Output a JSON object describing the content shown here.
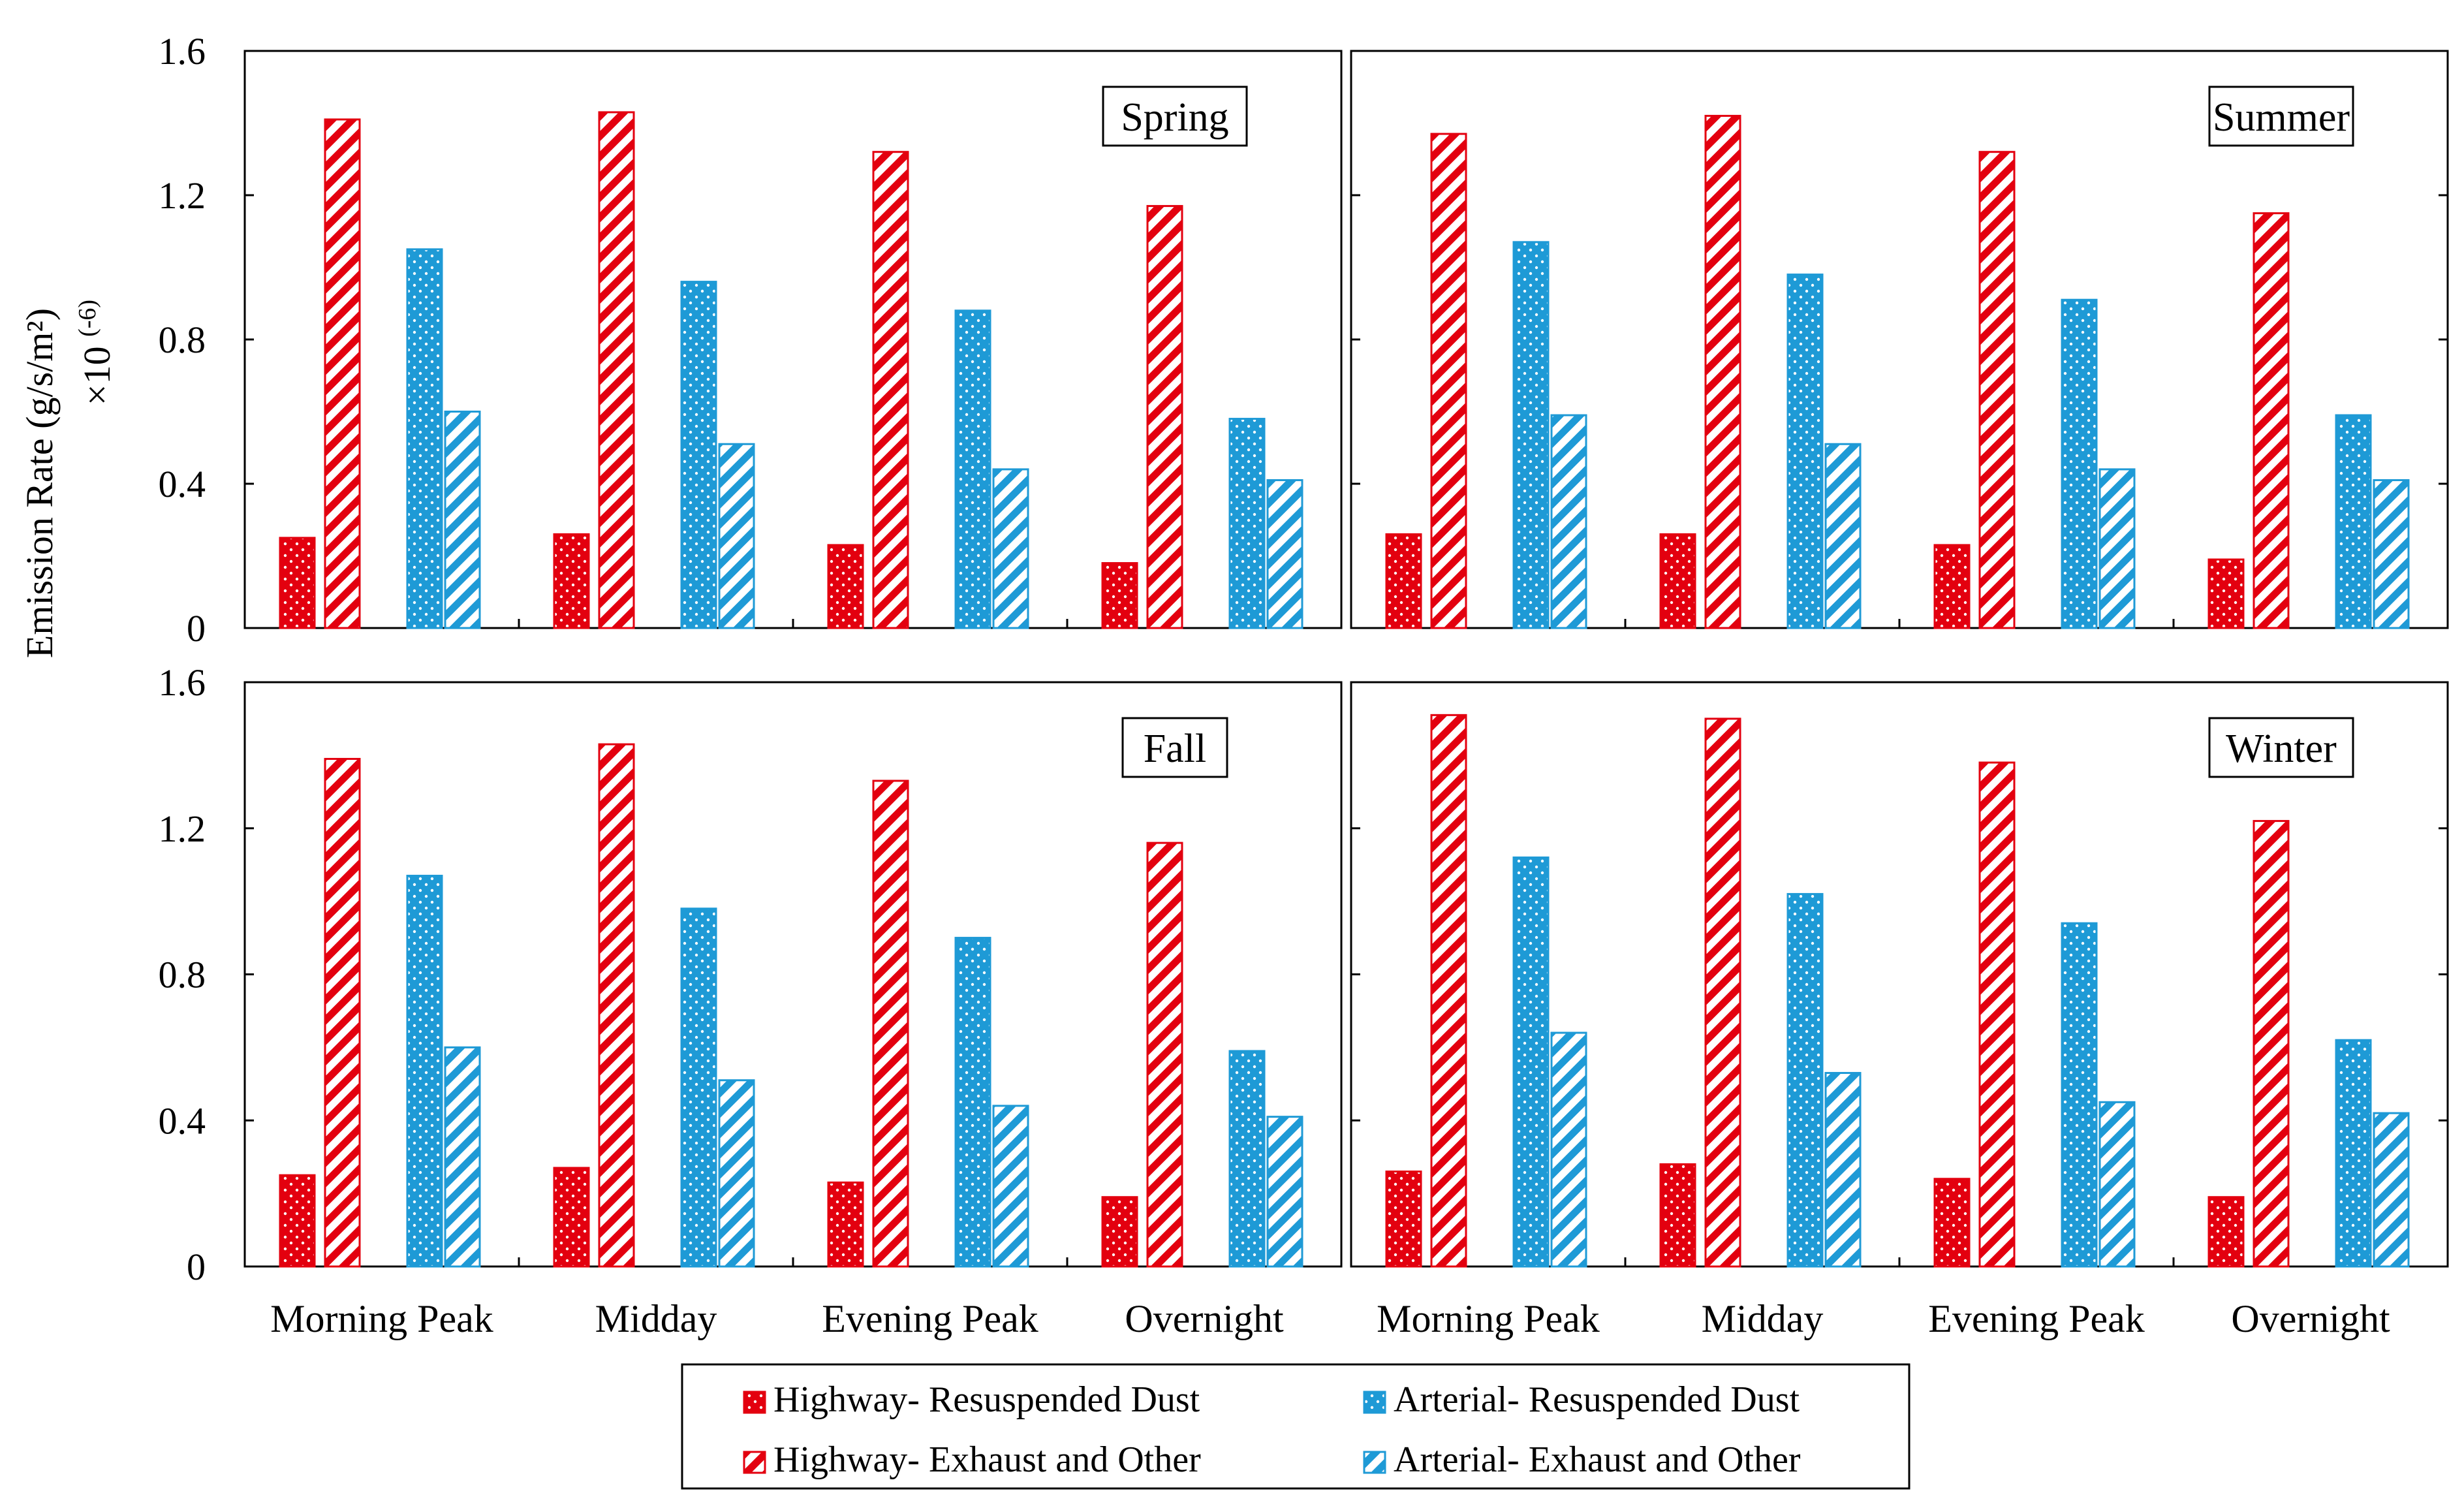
{
  "chart_data": {
    "type": "bar",
    "ylabel": "Emission Rate (g/s/m²)",
    "ylabel_multiplier": "×10",
    "ylabel_exponent": "(-6)",
    "ylim": [
      0,
      1.6
    ],
    "yticks": [
      "0",
      "0.4",
      "0.8",
      "1.2",
      "1.6"
    ],
    "categories": [
      "Morning Peak",
      "Midday",
      "Evening Peak",
      "Overnight"
    ],
    "series_styles": [
      {
        "name": "Highway- Resuspended Dust",
        "color": "#e3000f",
        "pattern": "dots"
      },
      {
        "name": "Highway- Exhaust and Other",
        "color": "#e3000f",
        "pattern": "hatch"
      },
      {
        "name": "Arterial- Resuspended Dust",
        "color": "#1e9ad6",
        "pattern": "dots"
      },
      {
        "name": "Arterial- Exhaust and Other",
        "color": "#1e9ad6",
        "pattern": "hatch"
      }
    ],
    "legend_position": "bottom-center",
    "panels": [
      {
        "title": "Spring",
        "series": [
          {
            "name": "Highway- Resuspended Dust",
            "values": [
              0.25,
              0.26,
              0.23,
              0.18
            ]
          },
          {
            "name": "Highway- Exhaust and Other",
            "values": [
              1.41,
              1.43,
              1.32,
              1.17
            ]
          },
          {
            "name": "Arterial- Resuspended Dust",
            "values": [
              1.05,
              0.96,
              0.88,
              0.58
            ]
          },
          {
            "name": "Arterial- Exhaust and Other",
            "values": [
              0.6,
              0.51,
              0.44,
              0.41
            ]
          }
        ]
      },
      {
        "title": "Summer",
        "series": [
          {
            "name": "Highway- Resuspended Dust",
            "values": [
              0.26,
              0.26,
              0.23,
              0.19
            ]
          },
          {
            "name": "Highway- Exhaust and Other",
            "values": [
              1.37,
              1.42,
              1.32,
              1.15
            ]
          },
          {
            "name": "Arterial- Resuspended Dust",
            "values": [
              1.07,
              0.98,
              0.91,
              0.59
            ]
          },
          {
            "name": "Arterial- Exhaust and Other",
            "values": [
              0.59,
              0.51,
              0.44,
              0.41
            ]
          }
        ]
      },
      {
        "title": "Fall",
        "series": [
          {
            "name": "Highway- Resuspended Dust",
            "values": [
              0.25,
              0.27,
              0.23,
              0.19
            ]
          },
          {
            "name": "Highway- Exhaust and Other",
            "values": [
              1.39,
              1.43,
              1.33,
              1.16
            ]
          },
          {
            "name": "Arterial- Resuspended Dust",
            "values": [
              1.07,
              0.98,
              0.9,
              0.59
            ]
          },
          {
            "name": "Arterial- Exhaust and Other",
            "values": [
              0.6,
              0.51,
              0.44,
              0.41
            ]
          }
        ]
      },
      {
        "title": "Winter",
        "series": [
          {
            "name": "Highway- Resuspended Dust",
            "values": [
              0.26,
              0.28,
              0.24,
              0.19
            ]
          },
          {
            "name": "Highway- Exhaust and Other",
            "values": [
              1.51,
              1.5,
              1.38,
              1.22
            ]
          },
          {
            "name": "Arterial- Resuspended Dust",
            "values": [
              1.12,
              1.02,
              0.94,
              0.62
            ]
          },
          {
            "name": "Arterial- Exhaust and Other",
            "values": [
              0.64,
              0.53,
              0.45,
              0.42
            ]
          }
        ]
      }
    ]
  }
}
